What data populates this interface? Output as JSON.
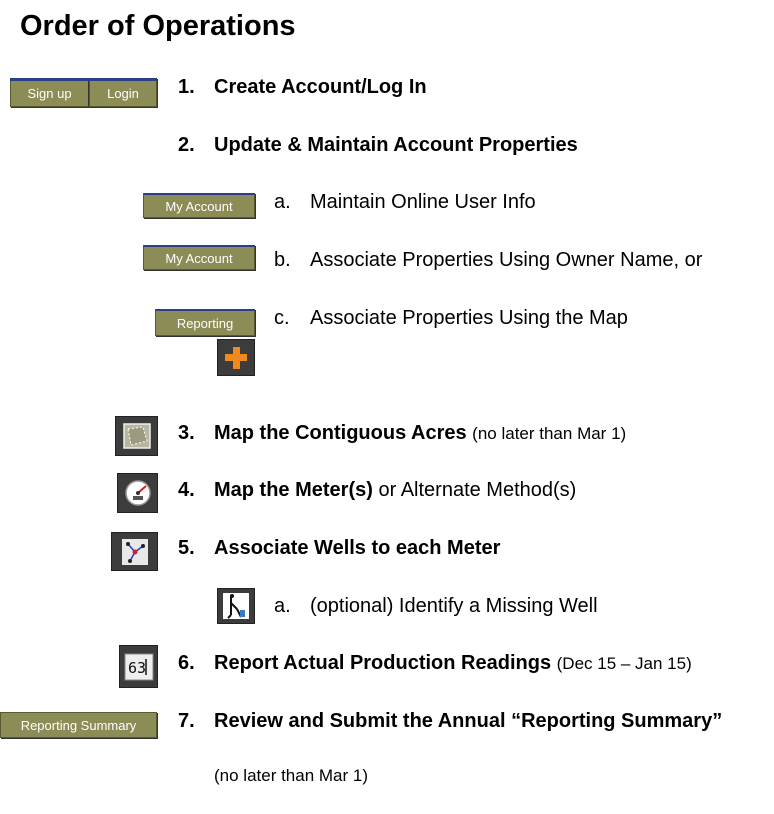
{
  "title": "Order of Operations",
  "steps": [
    {
      "num": "1.",
      "text": "Create Account/Log In",
      "buttons": [
        "Sign up",
        "Login"
      ]
    },
    {
      "num": "2.",
      "text": "Update & Maintain Account Properties"
    },
    {
      "num": "3.",
      "text": "Map the Contiguous Acres",
      "note": "(no later than Mar 1)"
    },
    {
      "num": "4.",
      "text": "Map the Meter(s)",
      "rest": " or Alternate Method(s)"
    },
    {
      "num": "5.",
      "text": "Associate Wells to each Meter"
    },
    {
      "num": "6.",
      "text": "Report Actual Production Readings",
      "note": "(Dec 15 – Jan 15)"
    },
    {
      "num": "7.",
      "text": "Review and Submit the Annual “Reporting Summary”",
      "button": "Reporting Summary",
      "note": "(no later than Mar 1)"
    }
  ],
  "substeps": [
    {
      "letter": "a.",
      "text": "Maintain Online User Info",
      "button": "My Account"
    },
    {
      "letter": "b.",
      "text": "Associate Properties Using Owner Name, or",
      "button": "My Account"
    },
    {
      "letter": "c.",
      "text": "Associate Properties Using the Map",
      "button": "Reporting"
    },
    {
      "letter": "a.",
      "text": "(optional) Identify a Missing Well"
    }
  ],
  "icons": {
    "plus": "plus-icon",
    "acres": "map-acres-icon",
    "meter": "meter-gauge-icon",
    "wells": "associate-wells-icon",
    "missing_well": "missing-well-icon",
    "readings": "odometer-readings-icon"
  },
  "colors": {
    "button_bg": "#8c8c56",
    "button_border_top": "#2c3e88",
    "icon_bg": "#3c3c3c",
    "plus": "#f08a1c"
  }
}
